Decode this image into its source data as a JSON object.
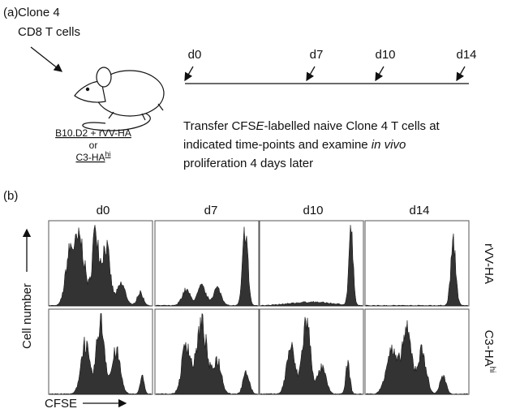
{
  "panel_a": {
    "label": "(a)",
    "mouse_label": [
      "Clone 4",
      "CD8 T cells"
    ],
    "models": {
      "line1": "B10.D2 + rVV-HA",
      "or": "or",
      "line2": "C3-HA",
      "line2_sup": "hi"
    },
    "timepoints": [
      "d0",
      "d7",
      "d10",
      "d14"
    ],
    "description": [
      [
        "Transfer CFS",
        "E",
        "-labelled naive Clone 4 T cells at"
      ],
      [
        "indicated time-points and examine ",
        "in vivo"
      ],
      [
        "proliferation 4 days later"
      ]
    ]
  },
  "panel_b": {
    "label": "(b)",
    "columns": [
      "d0",
      "d7",
      "d10",
      "d14"
    ],
    "rows": [
      {
        "label": "rVV-HA"
      },
      {
        "label": "C3-HA",
        "sup": "hi"
      }
    ],
    "y_label": "Cell number",
    "x_label": "CFSE"
  }
}
